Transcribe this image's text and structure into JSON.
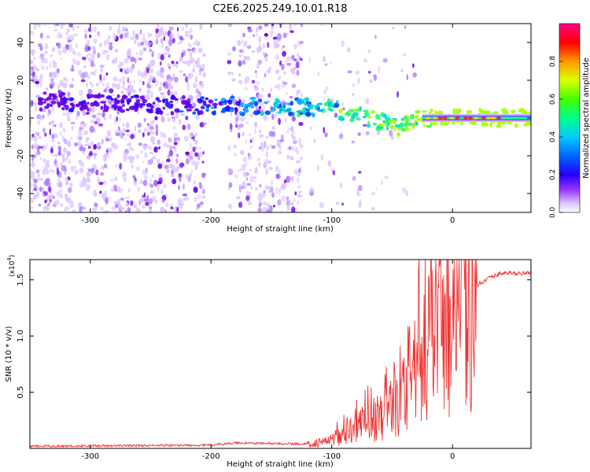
{
  "figure": {
    "title": "C2E6.2025.249.10.01.R18"
  },
  "chart_data": [
    {
      "type": "heatmap",
      "title": "C2E6.2025.249.10.01.R18",
      "xlabel": "Height of straight line (km)",
      "ylabel": "Frequency (Hz)",
      "xlim": [
        -350,
        65
      ],
      "ylim": [
        -50,
        50
      ],
      "xticks": [
        -300,
        -200,
        -100,
        0
      ],
      "yticks": [
        -40,
        -20,
        0,
        20,
        40
      ],
      "colorbar": {
        "label": "Normalized spectral amplitude",
        "range": [
          0,
          1
        ],
        "ticks": [
          "0.0",
          "0.2",
          "0.4",
          "0.6",
          "0.8"
        ],
        "colors": [
          "#ffffff",
          "#e8d4ff",
          "#8a2be2",
          "#3300ff",
          "#0000ff",
          "#00ccff",
          "#00ff66",
          "#66ff00",
          "#ffff00",
          "#ff8800",
          "#ff0000",
          "#ff00aa"
        ]
      },
      "ridge": {
        "x": [
          -340,
          -300,
          -250,
          -200,
          -150,
          -120,
          -100,
          -80,
          -60,
          -45,
          -35,
          -25,
          0,
          65
        ],
        "y": [
          9,
          8,
          7,
          7,
          6,
          6,
          5,
          2,
          -2,
          -5,
          -3,
          0,
          0,
          0
        ]
      }
    },
    {
      "type": "line",
      "xlabel": "Height of straight line (km)",
      "ylabel": "SNR (10 * v/v)",
      "y_multiplier": "(x10",
      "y_multiplier_exp": "4",
      "y_multiplier_close": ")",
      "xlim": [
        -350,
        65
      ],
      "ylim": [
        0,
        1.68
      ],
      "xticks": [
        -300,
        -200,
        -100,
        0
      ],
      "yticks": [
        0.5,
        1.0,
        1.5
      ],
      "ytick_labels": [
        "0.5",
        "1.0",
        "1.5"
      ],
      "color": "#ee3333",
      "envelope": {
        "x": [
          -350,
          -200,
          -180,
          -120,
          -100,
          -80,
          -60,
          -40,
          -30,
          -20,
          -10,
          0,
          10,
          20,
          30,
          40,
          65
        ],
        "y": [
          0.02,
          0.03,
          0.05,
          0.04,
          0.08,
          0.2,
          0.3,
          0.45,
          0.75,
          0.95,
          1.05,
          1.15,
          1.3,
          1.45,
          1.52,
          1.56,
          1.56
        ]
      }
    }
  ]
}
